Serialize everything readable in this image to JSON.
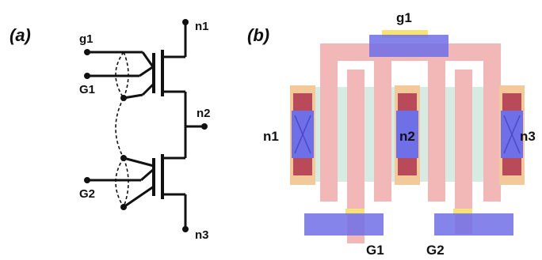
{
  "panels": {
    "a": "(a)",
    "b": "(b)"
  },
  "schematic": {
    "terminals": {
      "g1": "g1",
      "G1": "G1",
      "G2": "G2",
      "n1": "n1",
      "n2": "n2",
      "n3": "n3"
    }
  },
  "layout": {
    "labels": {
      "g1": "g1",
      "n1": "n1",
      "n2": "n2",
      "n3": "n3",
      "G1": "G1",
      "G2": "G2"
    }
  },
  "colors": {
    "wire": "#111111",
    "poly": "#f2b8b8",
    "diffusion": "#cfe8dc",
    "contact_pad": "#f3c99a",
    "contact_dark": "#b84a5a",
    "metal_blue": "#6f6fe8",
    "gate_pad_yellow": "#f7e27a"
  }
}
